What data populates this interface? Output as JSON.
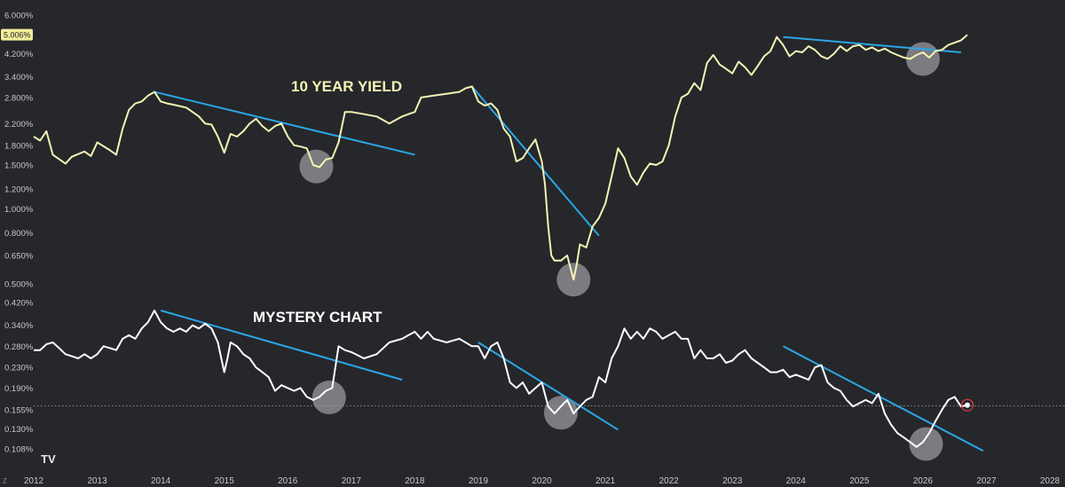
{
  "colors": {
    "background": "#26272b",
    "yield_line": "#f6f3b4",
    "mystery_line": "#ffffff",
    "trendline": "#2aa7e6",
    "highlight_circle": "#9c9da2",
    "axis_text": "#c7c8cc",
    "badge": "#f2ef9a",
    "last_point_ring": "#d33a3a"
  },
  "watermark": "TV",
  "corner_label": "Z",
  "chart_data": [
    {
      "type": "line",
      "title": "10 YEAR YIELD",
      "scale": "log",
      "ylim": [
        0.45,
        6.3
      ],
      "y_ticks": [
        "6.000%",
        "4.200%",
        "3.400%",
        "2.800%",
        "2.200%",
        "1.800%",
        "1.500%",
        "1.200%",
        "1.000%",
        "0.800%",
        "0.650%",
        "0.500%"
      ],
      "y_tick_values": [
        6.0,
        4.2,
        3.4,
        2.8,
        2.2,
        1.8,
        1.5,
        1.2,
        1.0,
        0.8,
        0.65,
        0.5
      ],
      "last_value_label": "5.006%",
      "last_value": 5.006,
      "series": [
        {
          "x": [
            2012.0,
            2012.1,
            2012.2,
            2012.3,
            2012.5,
            2012.6,
            2012.8,
            2012.9,
            2013.0,
            2013.2,
            2013.3,
            2013.4,
            2013.5,
            2013.6,
            2013.7,
            2013.8,
            2013.9,
            2014.0,
            2014.1,
            2014.2,
            2014.4,
            2014.5,
            2014.6,
            2014.7,
            2014.8,
            2014.9,
            2015.0,
            2015.1,
            2015.2,
            2015.3,
            2015.4,
            2015.5,
            2015.6,
            2015.7,
            2015.8,
            2015.9,
            2016.0,
            2016.1,
            2016.2,
            2016.3,
            2016.4,
            2016.5,
            2016.6,
            2016.7,
            2016.8,
            2016.9,
            2017.0,
            2017.2,
            2017.4,
            2017.6,
            2017.8,
            2017.9,
            2018.0,
            2018.1,
            2018.3,
            2018.5,
            2018.7,
            2018.8,
            2018.9,
            2019.0,
            2019.1,
            2019.2,
            2019.3,
            2019.4,
            2019.5,
            2019.6,
            2019.7,
            2019.8,
            2019.9,
            2020.0,
            2020.05,
            2020.1,
            2020.15,
            2020.2,
            2020.3,
            2020.4,
            2020.45,
            2020.5,
            2020.55,
            2020.6,
            2020.7,
            2020.8,
            2020.9,
            2021.0,
            2021.1,
            2021.2,
            2021.3,
            2021.4,
            2021.5,
            2021.6,
            2021.7,
            2021.8,
            2021.9,
            2022.0,
            2022.1,
            2022.2,
            2022.3,
            2022.4,
            2022.5,
            2022.6,
            2022.7,
            2022.8,
            2022.9,
            2023.0,
            2023.1,
            2023.2,
            2023.3,
            2023.4,
            2023.5,
            2023.6,
            2023.7,
            2023.8,
            2023.9,
            2024.0,
            2024.1,
            2024.2,
            2024.3,
            2024.4,
            2024.5,
            2024.6,
            2024.7,
            2024.8,
            2024.9,
            2025.0,
            2025.1,
            2025.2,
            2025.3,
            2025.4,
            2025.5,
            2025.6,
            2025.7,
            2025.8,
            2025.9,
            2026.0,
            2026.1,
            2026.2,
            2026.3,
            2026.4,
            2026.5,
            2026.6,
            2026.7
          ],
          "values": [
            1.95,
            1.88,
            2.05,
            1.65,
            1.52,
            1.62,
            1.7,
            1.63,
            1.85,
            1.72,
            1.65,
            2.1,
            2.5,
            2.65,
            2.7,
            2.85,
            2.95,
            2.7,
            2.65,
            2.62,
            2.55,
            2.45,
            2.35,
            2.2,
            2.18,
            1.95,
            1.68,
            2.0,
            1.95,
            2.05,
            2.2,
            2.3,
            2.15,
            2.05,
            2.15,
            2.2,
            1.95,
            1.8,
            1.78,
            1.75,
            1.5,
            1.47,
            1.58,
            1.6,
            1.85,
            2.45,
            2.45,
            2.4,
            2.35,
            2.2,
            2.35,
            2.4,
            2.45,
            2.8,
            2.85,
            2.9,
            2.95,
            3.05,
            3.1,
            2.7,
            2.6,
            2.65,
            2.5,
            2.1,
            1.95,
            1.55,
            1.6,
            1.75,
            1.9,
            1.55,
            1.25,
            0.85,
            0.65,
            0.62,
            0.62,
            0.65,
            0.58,
            0.52,
            0.6,
            0.72,
            0.7,
            0.85,
            0.92,
            1.05,
            1.35,
            1.75,
            1.6,
            1.35,
            1.25,
            1.4,
            1.52,
            1.5,
            1.55,
            1.8,
            2.35,
            2.8,
            2.9,
            3.2,
            3.0,
            3.85,
            4.15,
            3.8,
            3.65,
            3.5,
            3.9,
            3.7,
            3.45,
            3.75,
            4.1,
            4.3,
            4.9,
            4.55,
            4.1,
            4.3,
            4.25,
            4.5,
            4.35,
            4.1,
            4.0,
            4.2,
            4.5,
            4.3,
            4.5,
            4.55,
            4.35,
            4.45,
            4.3,
            4.4,
            4.25,
            4.15,
            4.05,
            4.0,
            4.15,
            4.25,
            4.05,
            4.3,
            4.35,
            4.55,
            4.65,
            4.75,
            5.0
          ]
        }
      ],
      "trendlines": [
        {
          "x": [
            2013.9,
            2018.0
          ],
          "y": [
            2.95,
            1.65
          ]
        },
        {
          "x": [
            2018.9,
            2020.9
          ],
          "y": [
            3.1,
            0.78
          ]
        },
        {
          "x": [
            2023.8,
            2026.6
          ],
          "y": [
            4.9,
            4.25
          ]
        }
      ],
      "highlights": [
        {
          "x": 2016.45,
          "y": 1.48
        },
        {
          "x": 2020.5,
          "y": 0.52
        },
        {
          "x": 2026.0,
          "y": 4.0
        }
      ]
    },
    {
      "type": "line",
      "title": "MYSTERY CHART",
      "scale": "log",
      "ylim": [
        0.093,
        0.46
      ],
      "y_ticks": [
        "0.420%",
        "0.340%",
        "0.280%",
        "0.230%",
        "0.190%",
        "0.155%",
        "0.130%",
        "0.108%"
      ],
      "y_tick_values": [
        0.42,
        0.34,
        0.28,
        0.23,
        0.19,
        0.155,
        0.13,
        0.108
      ],
      "reference_line": 0.161,
      "series": [
        {
          "x": [
            2012.0,
            2012.1,
            2012.2,
            2012.3,
            2012.4,
            2012.5,
            2012.6,
            2012.7,
            2012.8,
            2012.9,
            2013.0,
            2013.1,
            2013.2,
            2013.3,
            2013.4,
            2013.5,
            2013.6,
            2013.7,
            2013.8,
            2013.9,
            2014.0,
            2014.1,
            2014.2,
            2014.3,
            2014.4,
            2014.5,
            2014.6,
            2014.7,
            2014.8,
            2014.9,
            2015.0,
            2015.05,
            2015.1,
            2015.2,
            2015.3,
            2015.4,
            2015.5,
            2015.6,
            2015.7,
            2015.8,
            2015.9,
            2016.0,
            2016.1,
            2016.2,
            2016.3,
            2016.4,
            2016.5,
            2016.6,
            2016.7,
            2016.8,
            2016.9,
            2017.0,
            2017.2,
            2017.4,
            2017.6,
            2017.8,
            2017.9,
            2018.0,
            2018.1,
            2018.2,
            2018.3,
            2018.5,
            2018.7,
            2018.9,
            2019.0,
            2019.1,
            2019.2,
            2019.3,
            2019.4,
            2019.5,
            2019.6,
            2019.7,
            2019.8,
            2019.9,
            2020.0,
            2020.1,
            2020.2,
            2020.3,
            2020.4,
            2020.5,
            2020.6,
            2020.7,
            2020.8,
            2020.9,
            2021.0,
            2021.1,
            2021.2,
            2021.3,
            2021.4,
            2021.5,
            2021.6,
            2021.7,
            2021.8,
            2021.9,
            2022.0,
            2022.1,
            2022.2,
            2022.3,
            2022.4,
            2022.5,
            2022.6,
            2022.7,
            2022.8,
            2022.9,
            2023.0,
            2023.1,
            2023.2,
            2023.3,
            2023.4,
            2023.5,
            2023.6,
            2023.7,
            2023.8,
            2023.9,
            2024.0,
            2024.1,
            2024.2,
            2024.3,
            2024.4,
            2024.5,
            2024.6,
            2024.7,
            2024.8,
            2024.9,
            2025.0,
            2025.1,
            2025.2,
            2025.3,
            2025.4,
            2025.5,
            2025.6,
            2025.7,
            2025.8,
            2025.9,
            2026.0,
            2026.1,
            2026.2,
            2026.3,
            2026.4,
            2026.5,
            2026.6,
            2026.7
          ],
          "values": [
            0.27,
            0.27,
            0.285,
            0.29,
            0.275,
            0.26,
            0.255,
            0.25,
            0.26,
            0.25,
            0.26,
            0.28,
            0.275,
            0.27,
            0.3,
            0.31,
            0.3,
            0.33,
            0.35,
            0.39,
            0.35,
            0.33,
            0.32,
            0.33,
            0.32,
            0.34,
            0.33,
            0.345,
            0.33,
            0.29,
            0.22,
            0.25,
            0.29,
            0.28,
            0.26,
            0.25,
            0.23,
            0.22,
            0.21,
            0.185,
            0.195,
            0.19,
            0.185,
            0.19,
            0.175,
            0.17,
            0.175,
            0.185,
            0.19,
            0.28,
            0.27,
            0.265,
            0.25,
            0.26,
            0.29,
            0.3,
            0.31,
            0.32,
            0.3,
            0.32,
            0.3,
            0.29,
            0.3,
            0.28,
            0.28,
            0.25,
            0.28,
            0.29,
            0.25,
            0.2,
            0.19,
            0.2,
            0.18,
            0.19,
            0.2,
            0.16,
            0.15,
            0.16,
            0.17,
            0.15,
            0.16,
            0.17,
            0.175,
            0.21,
            0.2,
            0.25,
            0.28,
            0.33,
            0.3,
            0.32,
            0.3,
            0.33,
            0.32,
            0.3,
            0.31,
            0.32,
            0.3,
            0.3,
            0.25,
            0.27,
            0.25,
            0.25,
            0.26,
            0.24,
            0.245,
            0.26,
            0.27,
            0.25,
            0.24,
            0.23,
            0.22,
            0.22,
            0.225,
            0.21,
            0.215,
            0.21,
            0.205,
            0.23,
            0.235,
            0.2,
            0.19,
            0.185,
            0.17,
            0.16,
            0.165,
            0.17,
            0.165,
            0.18,
            0.15,
            0.135,
            0.125,
            0.12,
            0.115,
            0.11,
            0.115,
            0.125,
            0.14,
            0.155,
            0.17,
            0.175,
            0.16,
            0.162
          ]
        }
      ],
      "trendlines": [
        {
          "x": [
            2014.0,
            2017.8
          ],
          "y": [
            0.39,
            0.205
          ]
        },
        {
          "x": [
            2019.0,
            2021.2
          ],
          "y": [
            0.29,
            0.129
          ]
        },
        {
          "x": [
            2023.8,
            2026.95
          ],
          "y": [
            0.28,
            0.106
          ]
        }
      ],
      "highlights": [
        {
          "x": 2016.65,
          "y": 0.174
        },
        {
          "x": 2020.3,
          "y": 0.151
        },
        {
          "x": 2026.05,
          "y": 0.113
        }
      ]
    }
  ],
  "x_axis": {
    "ticks": [
      "2012",
      "2013",
      "2014",
      "2015",
      "2016",
      "2017",
      "2018",
      "2019",
      "2020",
      "2021",
      "2022",
      "2023",
      "2024",
      "2025",
      "2026",
      "2027",
      "2028"
    ],
    "tick_values": [
      2012,
      2013,
      2014,
      2015,
      2016,
      2017,
      2018,
      2019,
      2020,
      2021,
      2022,
      2023,
      2024,
      2025,
      2026,
      2027,
      2028
    ]
  }
}
